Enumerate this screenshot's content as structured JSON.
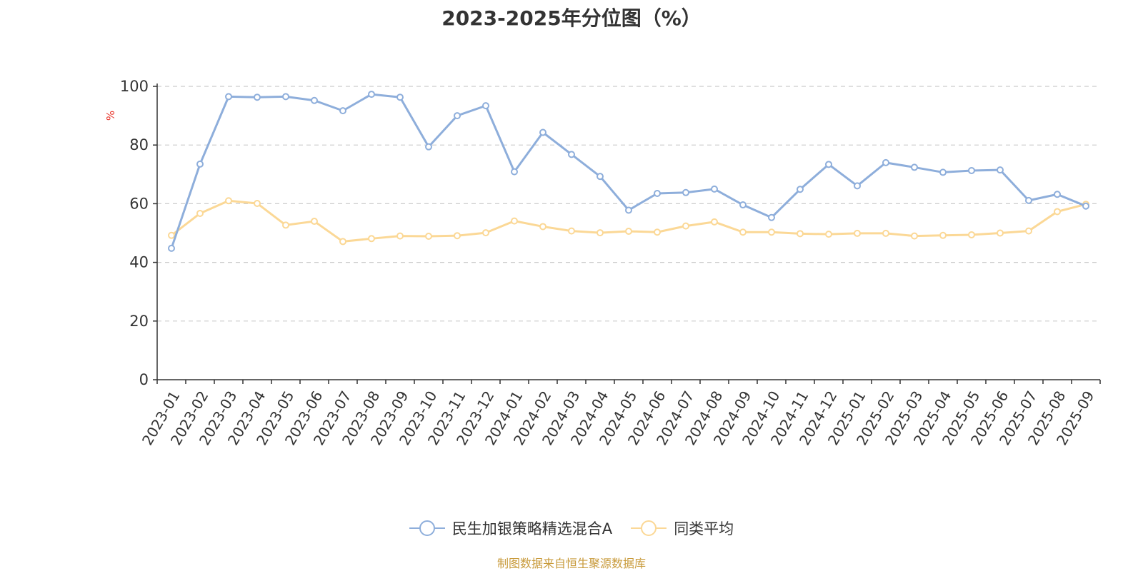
{
  "title": "2023-2025年分位图（%）",
  "source_note": "制图数据来自恒生聚源数据库",
  "colors": {
    "series1": "#8eaedb",
    "series2": "#fbd896",
    "axis": "#333333",
    "grid": "#cccccc",
    "unit_label": "#e8342a"
  },
  "chart_data": {
    "type": "line",
    "title": "2023-2025年分位图（%）",
    "ylabel": "%",
    "xlabel": "",
    "ylim": [
      0,
      100
    ],
    "yticks": [
      0,
      20,
      40,
      60,
      80,
      100
    ],
    "grid": true,
    "legend_position": "bottom",
    "categories": [
      "2023-01",
      "2023-02",
      "2023-03",
      "2023-04",
      "2023-05",
      "2023-06",
      "2023-07",
      "2023-08",
      "2023-09",
      "2023-10",
      "2023-11",
      "2023-12",
      "2024-01",
      "2024-02",
      "2024-03",
      "2024-04",
      "2024-05",
      "2024-06",
      "2024-07",
      "2024-08",
      "2024-09",
      "2024-10",
      "2024-11",
      "2024-12",
      "2025-01",
      "2025-02",
      "2025-03",
      "2025-04",
      "2025-05",
      "2025-06",
      "2025-07",
      "2025-08",
      "2025-09"
    ],
    "series": [
      {
        "name": "民生加银策略精选混合A",
        "values": [
          44.8,
          73.5,
          96.5,
          96.3,
          96.5,
          95.2,
          91.7,
          97.3,
          96.3,
          79.4,
          90.0,
          93.4,
          70.9,
          84.3,
          76.8,
          69.3,
          57.8,
          63.5,
          63.8,
          65.0,
          59.6,
          55.3,
          64.9,
          73.4,
          66.1,
          74.0,
          72.4,
          70.7,
          71.3,
          71.5,
          61.1,
          63.2,
          59.2
        ]
      },
      {
        "name": "同类平均",
        "values": [
          49.2,
          56.7,
          61.0,
          60.1,
          52.7,
          54.0,
          47.1,
          48.1,
          49.0,
          48.9,
          49.1,
          50.1,
          54.1,
          52.2,
          50.7,
          50.1,
          50.6,
          50.3,
          52.4,
          53.8,
          50.3,
          50.3,
          49.8,
          49.6,
          49.9,
          49.9,
          49.0,
          49.2,
          49.4,
          50.0,
          50.7,
          57.3,
          59.8
        ]
      }
    ]
  }
}
